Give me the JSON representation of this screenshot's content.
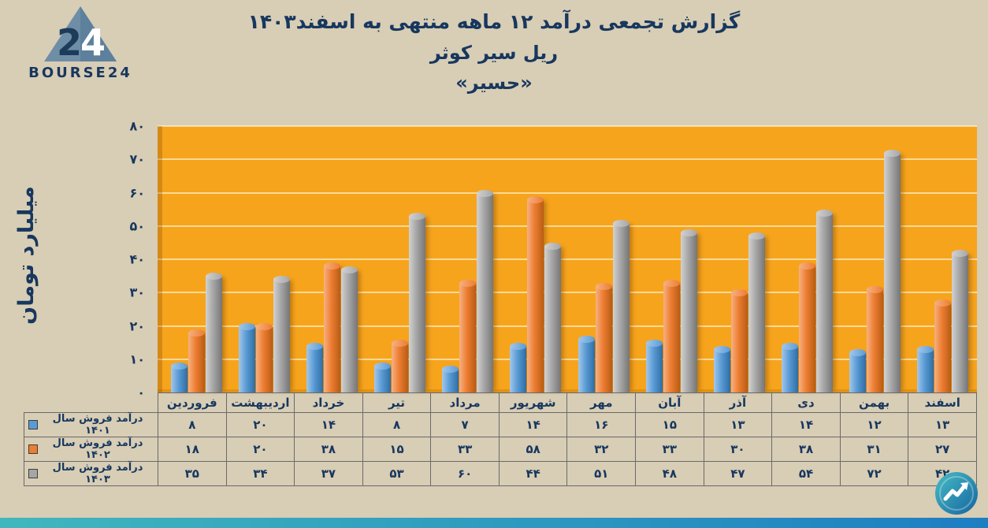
{
  "page": {
    "background": "#d8cdb5",
    "footer_bar_colors": [
      "#41b7bd",
      "#1d7ec2"
    ]
  },
  "brand": {
    "name": "BOURSE24",
    "logo_number": "24",
    "color": "#17375e"
  },
  "header": {
    "title_line1": "گزارش تجمعی درآمد ۱۲ ماهه منتهی به اسفند۱۴۰۳",
    "title_line2": "ریل سیر کوثر",
    "title_line3": "«حسیر»",
    "color": "#17375e"
  },
  "chart_data": {
    "type": "bar",
    "style": "3d-cylinder-columns",
    "title": "گزارش تجمعی درآمد ۱۲ ماهه منتهی به اسفند۱۴۰۳ ریل سیر کوثر «حسیر»",
    "ylabel": "میلیارد تومان",
    "ylim": [
      0,
      80
    ],
    "ytick_step": 10,
    "grid": true,
    "legend_position": "bottom-table-left",
    "plot_background": "#f7a41d",
    "categories": [
      "فروردین",
      "اردیبهشت",
      "خرداد",
      "تیر",
      "مرداد",
      "شهریور",
      "مهر",
      "آبان",
      "آذر",
      "دی",
      "بهمن",
      "اسفند"
    ],
    "series": [
      {
        "name": "درآمد فروش سال ۱۴۰۱",
        "color": "#5b9bd5",
        "color_light": "#a3c8ea",
        "color_dark": "#2e6da4",
        "values": [
          8,
          20,
          14,
          8,
          7,
          14,
          16,
          15,
          13,
          14,
          12,
          13
        ]
      },
      {
        "name": "درآمد فروش سال ۱۴۰۲",
        "color": "#ed7d31",
        "color_light": "#f6b183",
        "color_dark": "#b85c14",
        "values": [
          18,
          20,
          38,
          15,
          33,
          58,
          32,
          33,
          30,
          38,
          31,
          27
        ]
      },
      {
        "name": "درآمد فروش سال ۱۴۰۳",
        "color": "#a6a6a6",
        "color_light": "#d2d2d2",
        "color_dark": "#767676",
        "values": [
          35,
          34,
          37,
          53,
          60,
          44,
          51,
          48,
          47,
          54,
          72,
          42
        ]
      }
    ]
  }
}
